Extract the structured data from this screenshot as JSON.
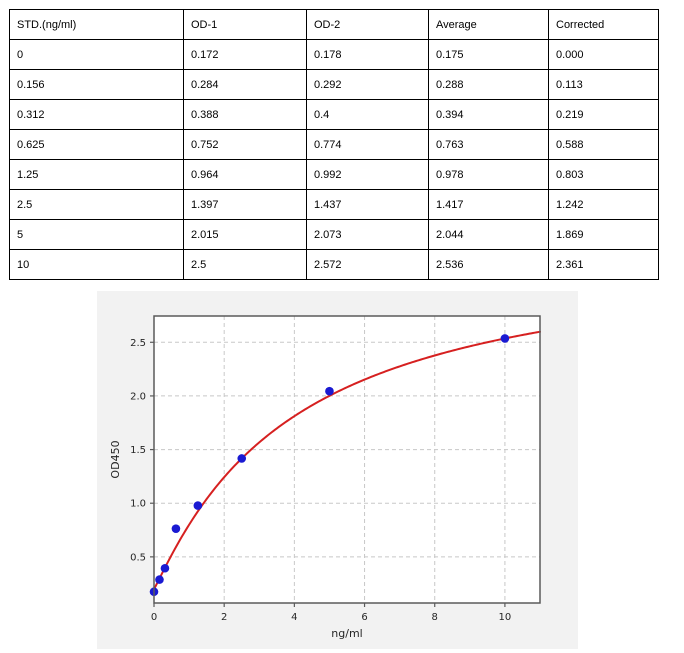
{
  "table": {
    "columns": [
      "STD.(ng/ml)",
      "OD-1",
      "OD-2",
      "Average",
      "Corrected"
    ],
    "rows": [
      [
        "0",
        "0.172",
        "0.178",
        "0.175",
        "0.000"
      ],
      [
        "0.156",
        "0.284",
        "0.292",
        "0.288",
        "0.113"
      ],
      [
        "0.312",
        "0.388",
        "0.4",
        "0.394",
        "0.219"
      ],
      [
        "0.625",
        "0.752",
        "0.774",
        "0.763",
        "0.588"
      ],
      [
        "1.25",
        "0.964",
        "0.992",
        "0.978",
        "0.803"
      ],
      [
        "2.5",
        "1.397",
        "1.437",
        "1.417",
        "1.242"
      ],
      [
        "5",
        "2.015",
        "2.073",
        "2.044",
        "1.869"
      ],
      [
        "10",
        "2.5",
        "2.572",
        "2.536",
        "2.361"
      ]
    ]
  },
  "chart_data": {
    "type": "scatter",
    "title": "",
    "xlabel": "ng/ml",
    "ylabel": "OD450",
    "x": [
      0,
      0.156,
      0.312,
      0.625,
      1.25,
      2.5,
      5,
      10
    ],
    "y": [
      0.175,
      0.288,
      0.394,
      0.763,
      0.978,
      1.417,
      2.044,
      2.536
    ],
    "fit_curve": {
      "type": "4PL",
      "a": 0.2,
      "b": 1.069,
      "c": 3.947,
      "d": 3.4
    },
    "xlim": [
      0,
      11
    ],
    "ylim": [
      0.07,
      2.745
    ],
    "xticks": [
      0,
      2,
      4,
      6,
      8,
      10
    ],
    "yticks": [
      0.5,
      1.0,
      1.5,
      2.0,
      2.5
    ],
    "grid": "dashed",
    "legend": "none",
    "colors": {
      "points": "#1a1ad2",
      "curve": "#d62020",
      "grid": "#c8c8c8",
      "frame": "#5a5a5a",
      "tick_text": "#262626",
      "figure_bg": "#f2f2f2",
      "plot_bg": "#ffffff"
    }
  }
}
